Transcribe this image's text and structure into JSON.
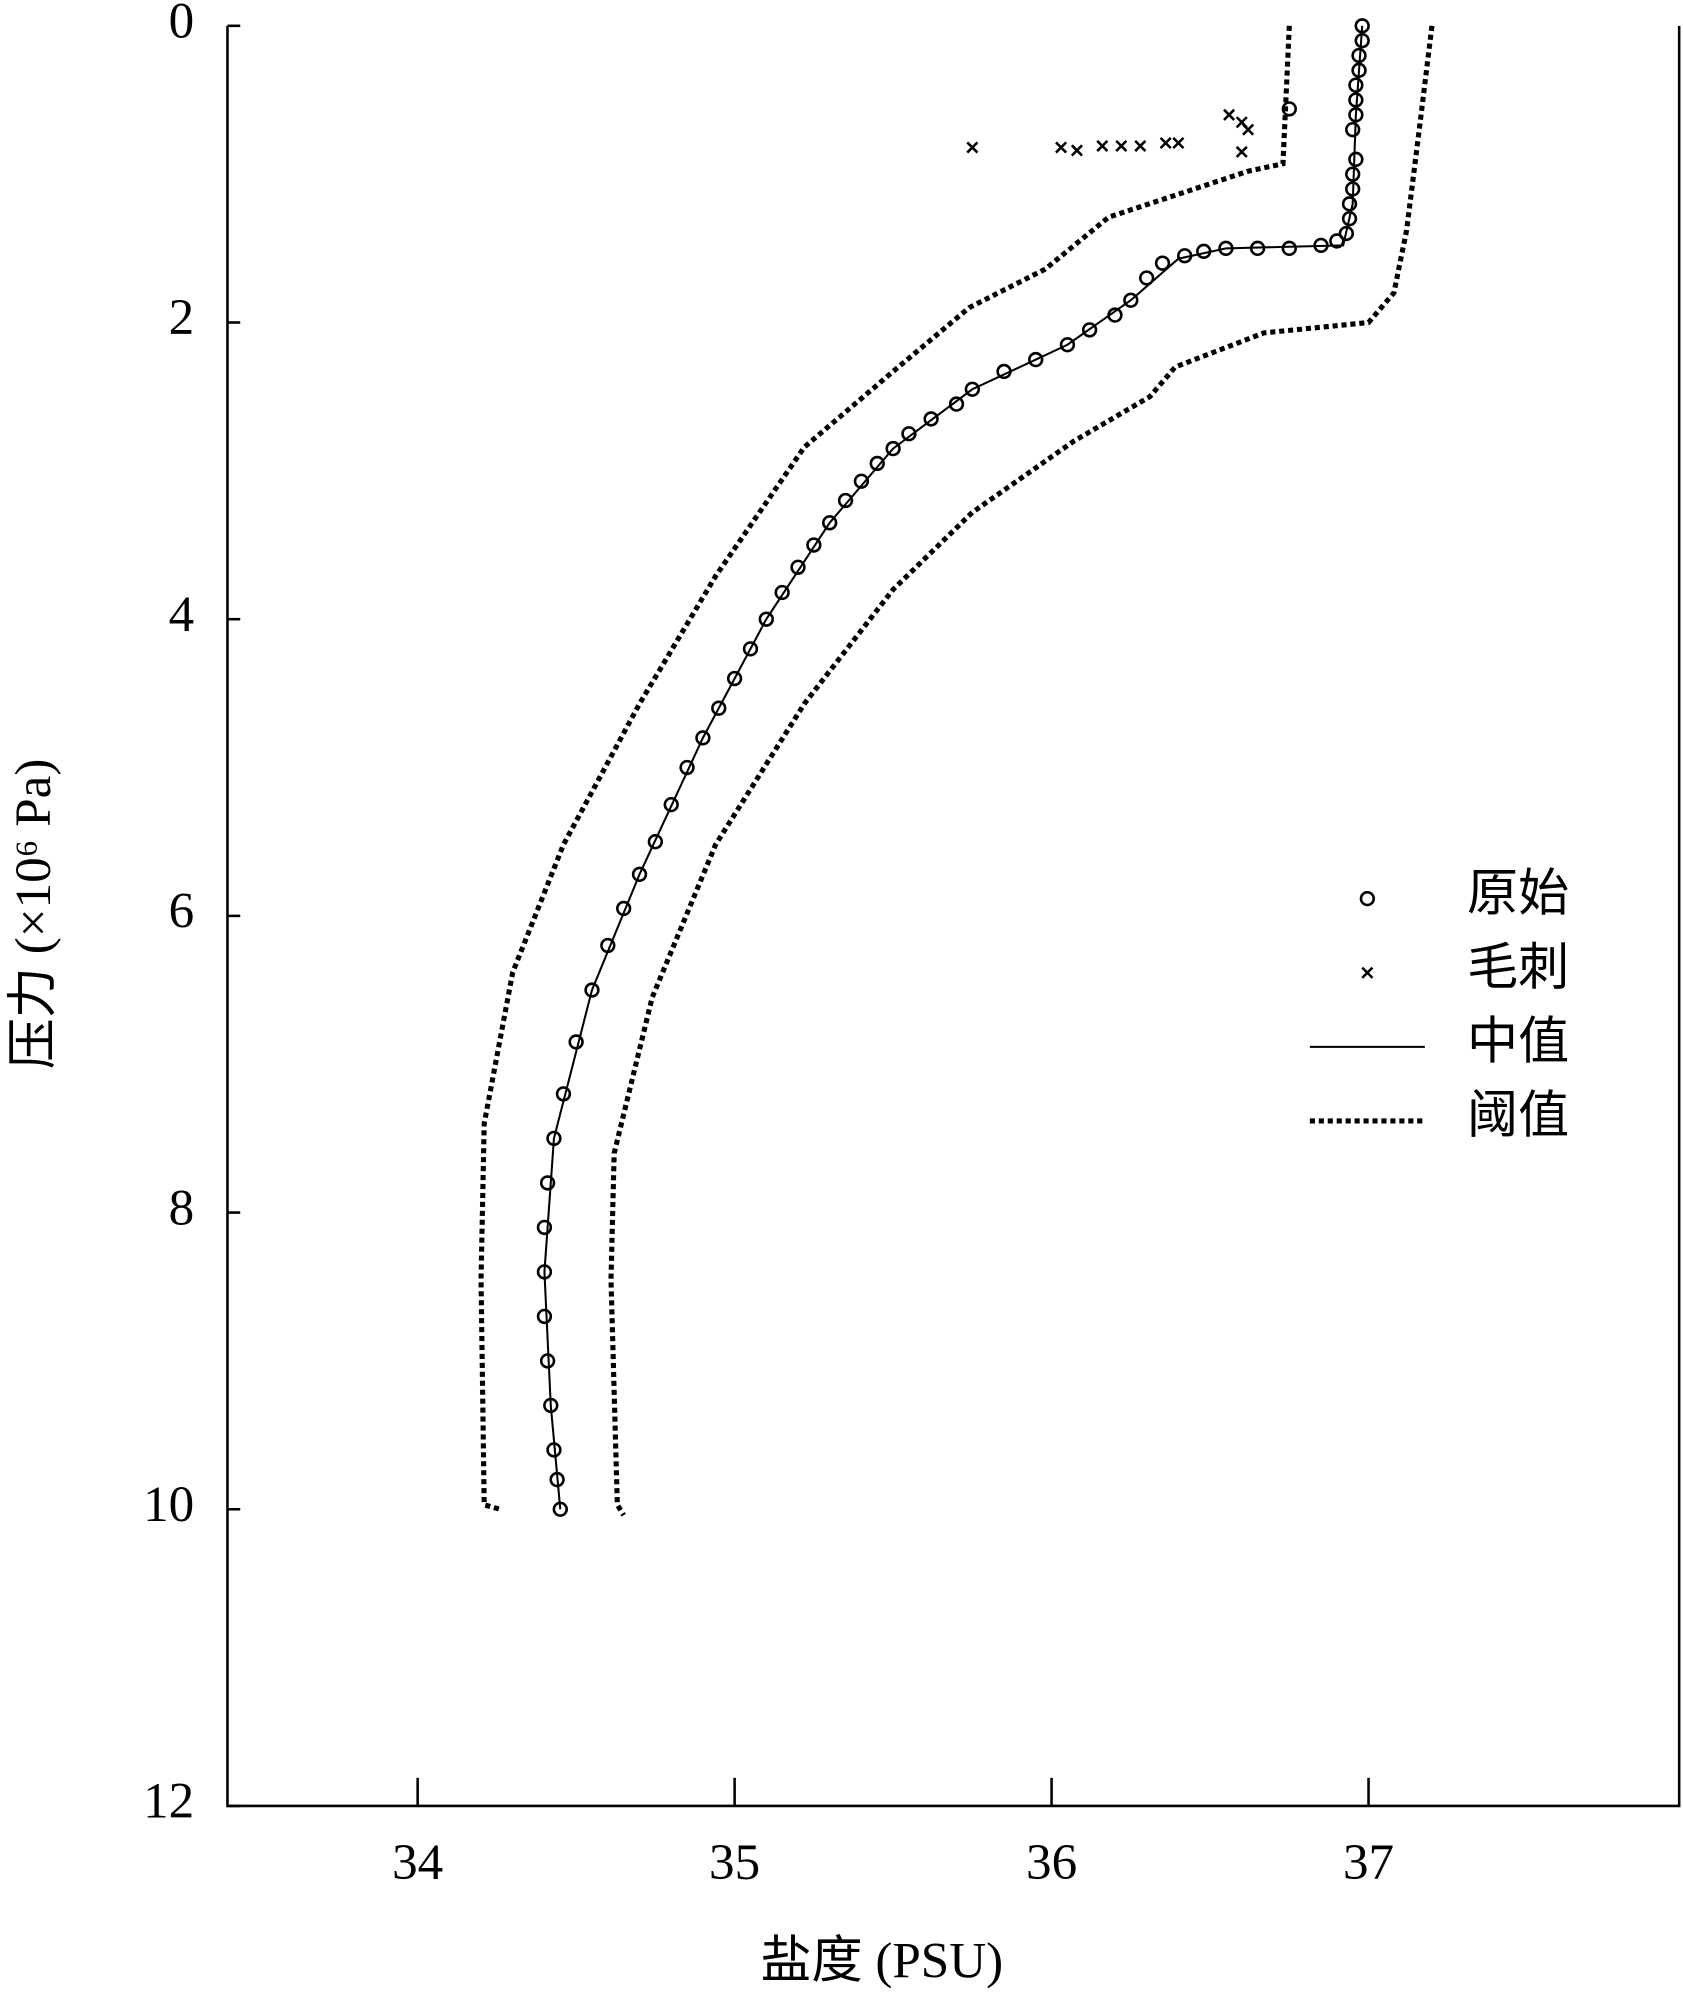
{
  "chart_data": {
    "type": "scatter",
    "xlabel": "盐度 (PSU)",
    "ylabel": "压力 (×10⁶ Pa)",
    "xlim": [
      33.4,
      37.98
    ],
    "ylim": [
      0,
      12
    ],
    "invert_y": true,
    "xticks": [
      34,
      35,
      36,
      37
    ],
    "yticks": [
      0,
      2,
      4,
      6,
      8,
      10,
      12
    ],
    "legend": "right",
    "series": [
      {
        "name": "原始",
        "marker": "circle",
        "color": "#000000",
        "x": [
          36.98,
          36.98,
          36.97,
          36.97,
          36.96,
          36.96,
          36.96,
          36.95,
          36.96,
          36.95,
          36.95,
          36.94,
          36.94,
          36.93,
          36.9,
          36.85,
          36.75,
          36.75,
          36.65,
          36.55,
          36.48,
          36.42,
          36.35,
          36.3,
          36.25,
          36.2,
          36.12,
          36.05,
          35.95,
          35.85,
          35.75,
          35.7,
          35.62,
          35.55,
          35.5,
          35.45,
          35.4,
          35.35,
          35.3,
          35.25,
          35.2,
          35.15,
          35.1,
          35.05,
          35.0,
          34.95,
          34.9,
          34.85,
          34.8,
          34.75,
          34.7,
          34.65,
          34.6,
          34.55,
          34.5,
          34.46,
          34.43,
          34.41,
          34.4,
          34.4,
          34.4,
          34.41,
          34.42,
          34.43,
          34.44,
          34.45
        ],
        "y": [
          0,
          0.1,
          0.2,
          0.3,
          0.4,
          0.5,
          0.6,
          0.7,
          0.9,
          1.0,
          1.1,
          1.2,
          1.3,
          1.4,
          1.45,
          1.48,
          0.56,
          1.5,
          1.5,
          1.5,
          1.52,
          1.55,
          1.6,
          1.7,
          1.85,
          1.95,
          2.05,
          2.15,
          2.25,
          2.33,
          2.45,
          2.55,
          2.65,
          2.75,
          2.85,
          2.95,
          3.07,
          3.2,
          3.35,
          3.5,
          3.65,
          3.82,
          4.0,
          4.2,
          4.4,
          4.6,
          4.8,
          5.0,
          5.25,
          5.5,
          5.72,
          5.95,
          6.2,
          6.5,
          6.85,
          7.2,
          7.5,
          7.8,
          8.1,
          8.4,
          8.7,
          9.0,
          9.3,
          9.6,
          9.8,
          10.0
        ]
      },
      {
        "name": "毛刺",
        "marker": "x",
        "color": "#000000",
        "x": [
          35.75,
          36.03,
          36.08,
          36.16,
          36.22,
          36.28,
          36.36,
          36.4,
          36.56,
          36.6,
          36.62,
          36.6
        ],
        "y": [
          0.82,
          0.82,
          0.84,
          0.81,
          0.81,
          0.81,
          0.79,
          0.79,
          0.6,
          0.65,
          0.7,
          0.85
        ]
      },
      {
        "name": "中值",
        "line": "solid",
        "color": "#000000",
        "x": [
          36.98,
          36.96,
          36.95,
          36.92,
          36.55,
          36.4,
          36.25,
          36.05,
          35.75,
          35.5,
          35.3,
          35.1,
          34.9,
          34.7,
          34.55,
          34.43,
          34.4,
          34.42,
          34.45
        ],
        "y": [
          0,
          0.6,
          1.2,
          1.48,
          1.5,
          1.57,
          1.85,
          2.15,
          2.45,
          2.85,
          3.35,
          4.0,
          4.8,
          5.72,
          6.5,
          7.5,
          8.4,
          9.3,
          10.0
        ]
      },
      {
        "name": "阈值",
        "line": "dotted",
        "color": "#000000",
        "lines": [
          {
            "x": [
              36.75,
              36.73,
              36.62,
              36.45,
              36.18,
              35.98,
              35.74,
              35.5,
              35.22,
              34.94,
              34.7,
              34.46,
              34.3,
              34.21,
              34.2,
              34.21,
              34.26
            ],
            "y": [
              0,
              0.93,
              0.98,
              1.1,
              1.29,
              1.64,
              1.9,
              2.33,
              2.84,
              3.71,
              4.57,
              5.52,
              6.38,
              7.4,
              8.45,
              9.97,
              10.0
            ]
          },
          {
            "x": [
              37.2,
              37.16,
              37.12,
              37.08,
              37.0,
              36.67,
              36.39,
              36.31,
              36.07,
              35.75,
              35.5,
              35.22,
              34.94,
              34.74,
              34.62,
              34.61,
              34.63,
              34.65
            ],
            "y": [
              0,
              0.7,
              1.38,
              1.8,
              2.0,
              2.07,
              2.3,
              2.5,
              2.8,
              3.28,
              3.8,
              4.57,
              5.52,
              6.55,
              7.6,
              8.45,
              9.97,
              10.04
            ]
          }
        ]
      }
    ]
  }
}
